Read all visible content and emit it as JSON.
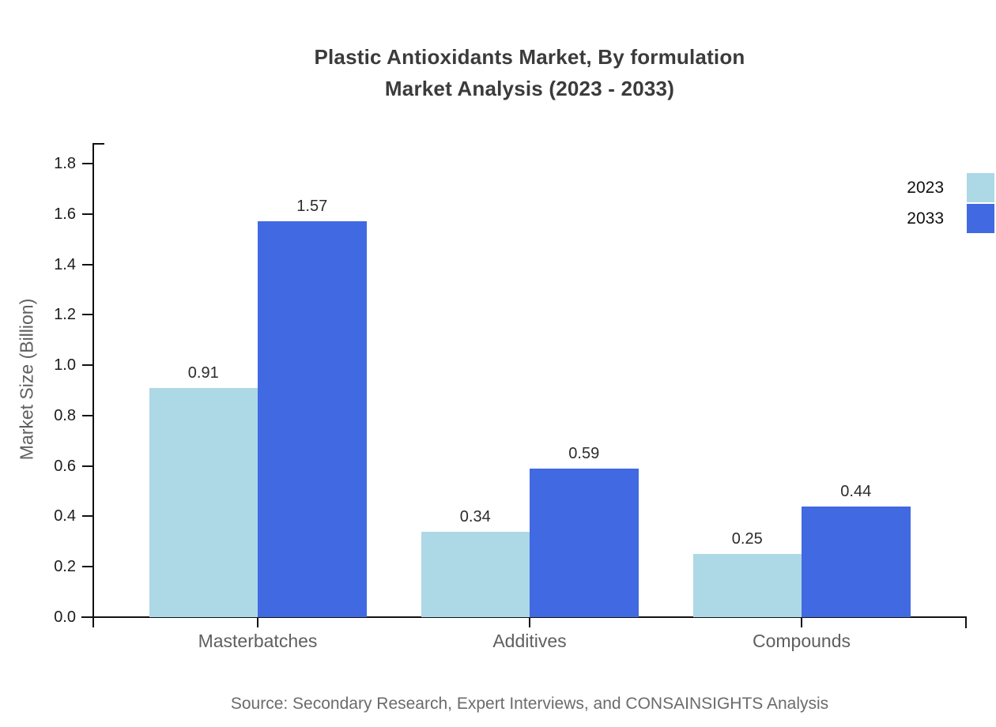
{
  "chart_data": {
    "type": "bar",
    "title_line1": "Plastic Antioxidants Market, By formulation",
    "title_line2": "Market Analysis (2023 - 2033)",
    "ylabel": "Market Size (Billion)",
    "categories": [
      "Masterbatches",
      "Additives",
      "Compounds"
    ],
    "series": [
      {
        "name": "2023",
        "color": "#ADD8E6",
        "values": [
          0.91,
          0.34,
          0.25
        ]
      },
      {
        "name": "2033",
        "color": "#4169E1",
        "values": [
          1.57,
          0.59,
          0.44
        ]
      }
    ],
    "ylim": [
      0,
      1.8
    ],
    "yticks": [
      0,
      0.2,
      0.4,
      0.6,
      0.8,
      1.0,
      1.2,
      1.4,
      1.6,
      1.8
    ],
    "value_label_decimals": 2,
    "grid": false,
    "legend_position": "top-right",
    "source": "Source: Secondary Research, Expert Interviews, and CONSAINSIGHTS Analysis"
  }
}
